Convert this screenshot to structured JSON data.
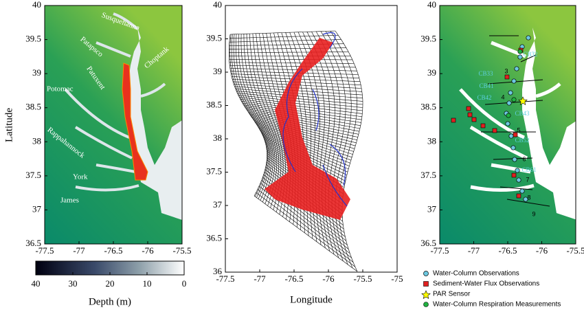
{
  "panels": [
    {
      "ylabel": "Latitude",
      "xlim": [
        -77.5,
        -75.5
      ],
      "ylim": [
        36.5,
        40
      ],
      "xticks": [
        -77.5,
        -77,
        -76.5,
        -76,
        -75.5
      ],
      "yticks": [
        36.5,
        37,
        37.5,
        38,
        38.5,
        39,
        39.5,
        40
      ],
      "place_labels": [
        "Susquehanna",
        "Patapsco",
        "Potomac",
        "Patuxent",
        "Choptank",
        "Rappahannock",
        "York",
        "James"
      ]
    },
    {
      "xlabel": "Longitude",
      "xlim": [
        -77.5,
        -75
      ],
      "ylim": [
        36,
        40
      ],
      "xticks": [
        -77.5,
        -77,
        -76.5,
        -76,
        -75.5,
        -75
      ],
      "yticks": [
        36,
        36.5,
        37,
        37.5,
        38,
        38.5,
        39,
        39.5,
        40
      ]
    },
    {
      "xlim": [
        -77.5,
        -75.5
      ],
      "ylim": [
        36.5,
        40
      ],
      "xticks": [
        -77.5,
        -77,
        -76.5,
        -76,
        -75.5
      ],
      "yticks": [
        36.5,
        37,
        37.5,
        38,
        38.5,
        39,
        39.5,
        40
      ],
      "station_labels": [
        "CB32",
        "CB33",
        "CB41",
        "CB42",
        "CB43",
        "CB52",
        "CB61"
      ],
      "segment_labels": [
        "3",
        "4",
        "5",
        "6",
        "7",
        "8",
        "9"
      ]
    }
  ],
  "colorbar": {
    "label": "Depth (m)",
    "lim": [
      40,
      0
    ],
    "ticks": [
      40,
      30,
      20,
      10,
      0
    ]
  },
  "legend": [
    "Water-Column Observations",
    "Sediment-Water Flux Observations",
    "PAR Sensor",
    "Water-Column Respiration Measurements"
  ]
}
